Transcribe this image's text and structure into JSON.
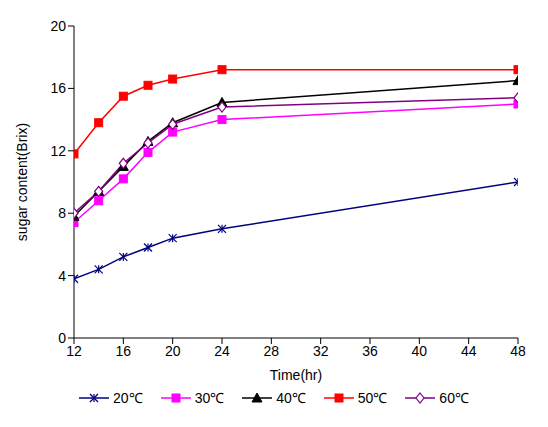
{
  "chart_data": {
    "type": "line",
    "x_label": "Time(hr)",
    "y_label": "sugar content(Brix)",
    "x": [
      12,
      14,
      16,
      18,
      20,
      24,
      48
    ],
    "xlim": [
      12,
      48
    ],
    "xticks": [
      12,
      16,
      20,
      24,
      28,
      32,
      36,
      40,
      44,
      48
    ],
    "ylim": [
      0,
      20
    ],
    "yticks": [
      0,
      4,
      8,
      12,
      16,
      20
    ],
    "grid": false,
    "legend": "bottom",
    "series": [
      {
        "name": "20℃",
        "color": "#000080",
        "marker": "star",
        "values": [
          3.8,
          4.4,
          5.2,
          5.8,
          6.4,
          7.0,
          10.0
        ]
      },
      {
        "name": "30℃",
        "color": "#ff00ff",
        "marker": "square",
        "values": [
          7.4,
          8.8,
          10.2,
          11.9,
          13.2,
          14.0,
          15.0
        ]
      },
      {
        "name": "40℃",
        "color": "#000000",
        "marker": "triangle",
        "values": [
          7.8,
          9.4,
          11.0,
          12.6,
          13.8,
          15.1,
          16.5
        ]
      },
      {
        "name": "50℃",
        "color": "#ff0000",
        "marker": "square",
        "values": [
          11.8,
          13.8,
          15.5,
          16.2,
          16.6,
          17.2,
          17.2
        ]
      },
      {
        "name": "60℃",
        "color": "#800080",
        "marker": "diamond",
        "values": [
          8.0,
          9.4,
          11.2,
          12.5,
          13.7,
          14.8,
          15.4
        ]
      }
    ]
  }
}
